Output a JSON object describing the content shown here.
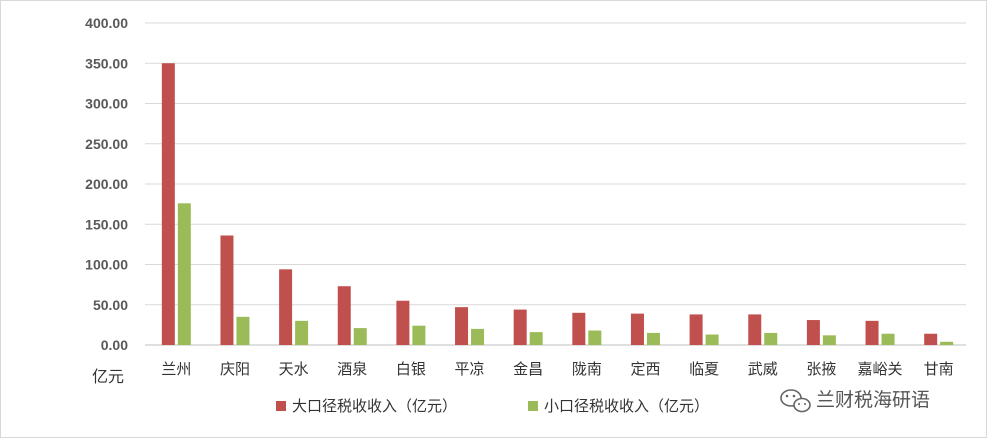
{
  "chart_data": {
    "type": "bar",
    "title": "",
    "xlabel": "",
    "ylabel": "",
    "y_unit": "亿元",
    "ylim": [
      0,
      400
    ],
    "yticks": [
      "0.00",
      "50.00",
      "100.00",
      "150.00",
      "200.00",
      "250.00",
      "300.00",
      "350.00",
      "400.00"
    ],
    "grid": true,
    "legend_position": "bottom",
    "categories": [
      "兰州",
      "庆阳",
      "天水",
      "酒泉",
      "白银",
      "平凉",
      "金昌",
      "陇南",
      "定西",
      "临夏",
      "武威",
      "张掖",
      "嘉峪关",
      "甘南"
    ],
    "series": [
      {
        "name": "大口径税收收入（亿元）",
        "color": "#c0504d",
        "values": [
          350,
          136,
          94,
          73,
          55,
          47,
          44,
          40,
          39,
          38,
          38,
          31,
          30,
          14
        ]
      },
      {
        "name": "小口径税收收入（亿元）",
        "color": "#9bbb59",
        "values": [
          176,
          35,
          30,
          21,
          24,
          20,
          16,
          18,
          15,
          13,
          15,
          12,
          14,
          4
        ]
      }
    ]
  },
  "watermark": {
    "text": "兰财税海研语",
    "icon": "wechat-icon"
  }
}
